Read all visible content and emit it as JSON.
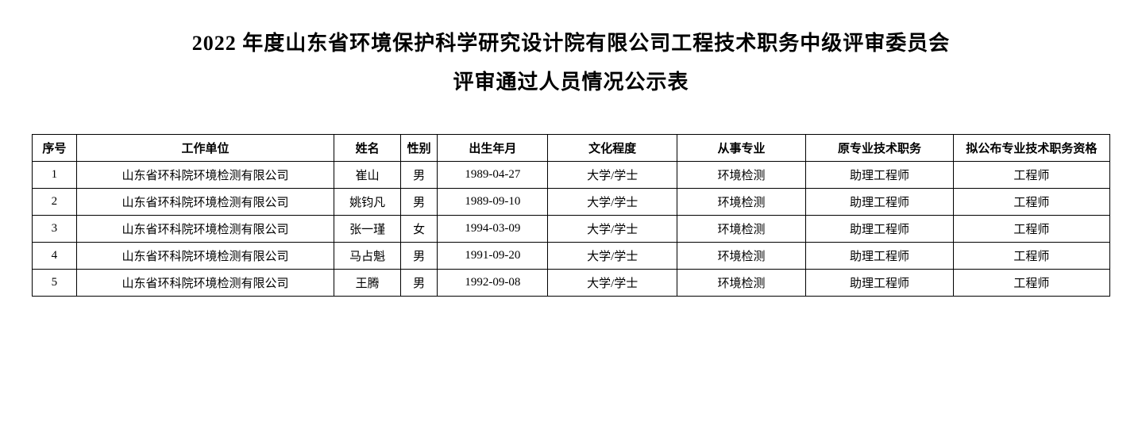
{
  "title": {
    "line1": "2022 年度山东省环境保护科学研究设计院有限公司工程技术职务中级评审委员会",
    "line2": "评审通过人员情况公示表"
  },
  "table": {
    "columns": [
      "序号",
      "工作单位",
      "姓名",
      "性别",
      "出生年月",
      "文化程度",
      "从事专业",
      "原专业技术职务",
      "拟公布专业技术职务资格"
    ],
    "rows": [
      [
        "1",
        "山东省环科院环境检测有限公司",
        "崔山",
        "男",
        "1989-04-27",
        "大学/学士",
        "环境检测",
        "助理工程师",
        "工程师"
      ],
      [
        "2",
        "山东省环科院环境检测有限公司",
        "姚钧凡",
        "男",
        "1989-09-10",
        "大学/学士",
        "环境检测",
        "助理工程师",
        "工程师"
      ],
      [
        "3",
        "山东省环科院环境检测有限公司",
        "张一瑾",
        "女",
        "1994-03-09",
        "大学/学士",
        "环境检测",
        "助理工程师",
        "工程师"
      ],
      [
        "4",
        "山东省环科院环境检测有限公司",
        "马占魁",
        "男",
        "1991-09-20",
        "大学/学士",
        "环境检测",
        "助理工程师",
        "工程师"
      ],
      [
        "5",
        "山东省环科院环境检测有限公司",
        "王腾",
        "男",
        "1992-09-08",
        "大学/学士",
        "环境检测",
        "助理工程师",
        "工程师"
      ]
    ]
  }
}
